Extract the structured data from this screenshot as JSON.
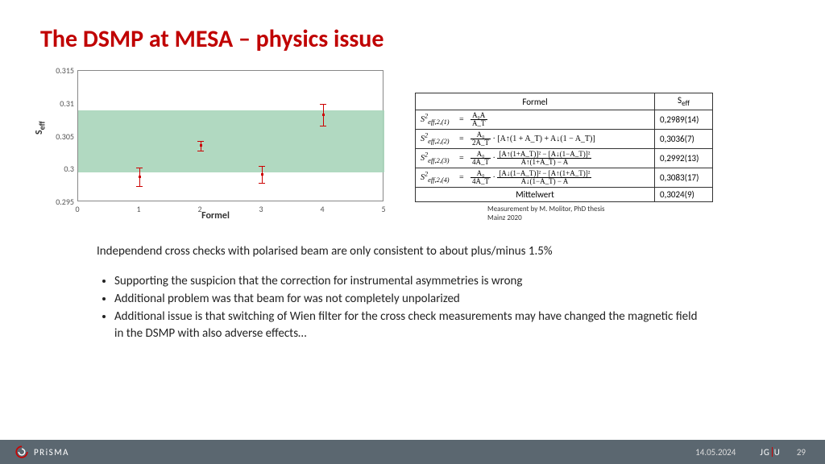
{
  "title": "The DSMP at MESA – physics issue",
  "chart": {
    "type": "scatter-errorbar",
    "xlabel": "Formel",
    "ylabel": "S_eff",
    "xlim": [
      0,
      5
    ],
    "ylim": [
      0.295,
      0.315
    ],
    "yticks": [
      0.295,
      0.3,
      0.305,
      0.31,
      0.315
    ],
    "xticks": [
      0,
      1,
      2,
      3,
      4,
      5
    ],
    "band": {
      "ymin": 0.2995,
      "ymax": 0.309,
      "color": "#a8d5ba"
    },
    "background": "#ffffff",
    "axis_color": "#888888",
    "marker_color": "#cc0000",
    "points": [
      {
        "x": 1,
        "y": 0.2989,
        "err": 0.0014
      },
      {
        "x": 2,
        "y": 0.3036,
        "err": 0.0007
      },
      {
        "x": 3,
        "y": 0.2992,
        "err": 0.0013
      },
      {
        "x": 4,
        "y": 0.3083,
        "err": 0.0017
      }
    ],
    "tick_fontsize": 10,
    "label_fontsize": 12
  },
  "table": {
    "header": {
      "col1": "Formel",
      "col2": "S_eff"
    },
    "rows": [
      {
        "lhs": "S²_eff,2,(1)",
        "rhs_html": "frac|A₀A|A_T",
        "seff": "0,2989(14)"
      },
      {
        "lhs": "S²_eff,2,(2)",
        "rhs_html": "frac|A₀|2A_T · [A↑(1 + A_T) + A↓(1 − A_T)]",
        "seff": "0,3036(7)"
      },
      {
        "lhs": "S²_eff,2,(3)",
        "rhs_html": "frac|A₀|4A_T ·frac|[A↑(1+A_T)]² − [A↓(1−A_T)]²|A↑(1+A_T) − A",
        "seff": "0,2992(13)"
      },
      {
        "lhs": "S²_eff,2,(4)",
        "rhs_html": "frac|A₀|4A_T ·frac|[A↓(1−A_T)]² − [A↑(1+A_T)]²|A↓(1−A_T) − A",
        "seff": "0,3083(17)"
      }
    ],
    "footer": {
      "label": "Mittelwert",
      "seff": "0,3024(9)"
    }
  },
  "caption_line1": "Measurement by M. Molitor, PhD thesis",
  "caption_line2": "Mainz 2020",
  "lead": "Independend cross checks with polarised beam  are only consistent to about plus/minus 1.5%",
  "bullets": [
    "Supporting  the suspicion  that the  correction for instrumental asymmetries is wrong",
    "Additional problem was that beam for was not completely unpolarized",
    "Additional issue  is that switching of Wien filter for the cross check measurements may have changed the magnetic field in the DSMP with also adverse effects…"
  ],
  "footer": {
    "brand": "PRiSMA",
    "date": "14.05.2024",
    "uni": "JG|U",
    "page": "29",
    "bg": "#5b6770",
    "accent": "#c00000"
  }
}
